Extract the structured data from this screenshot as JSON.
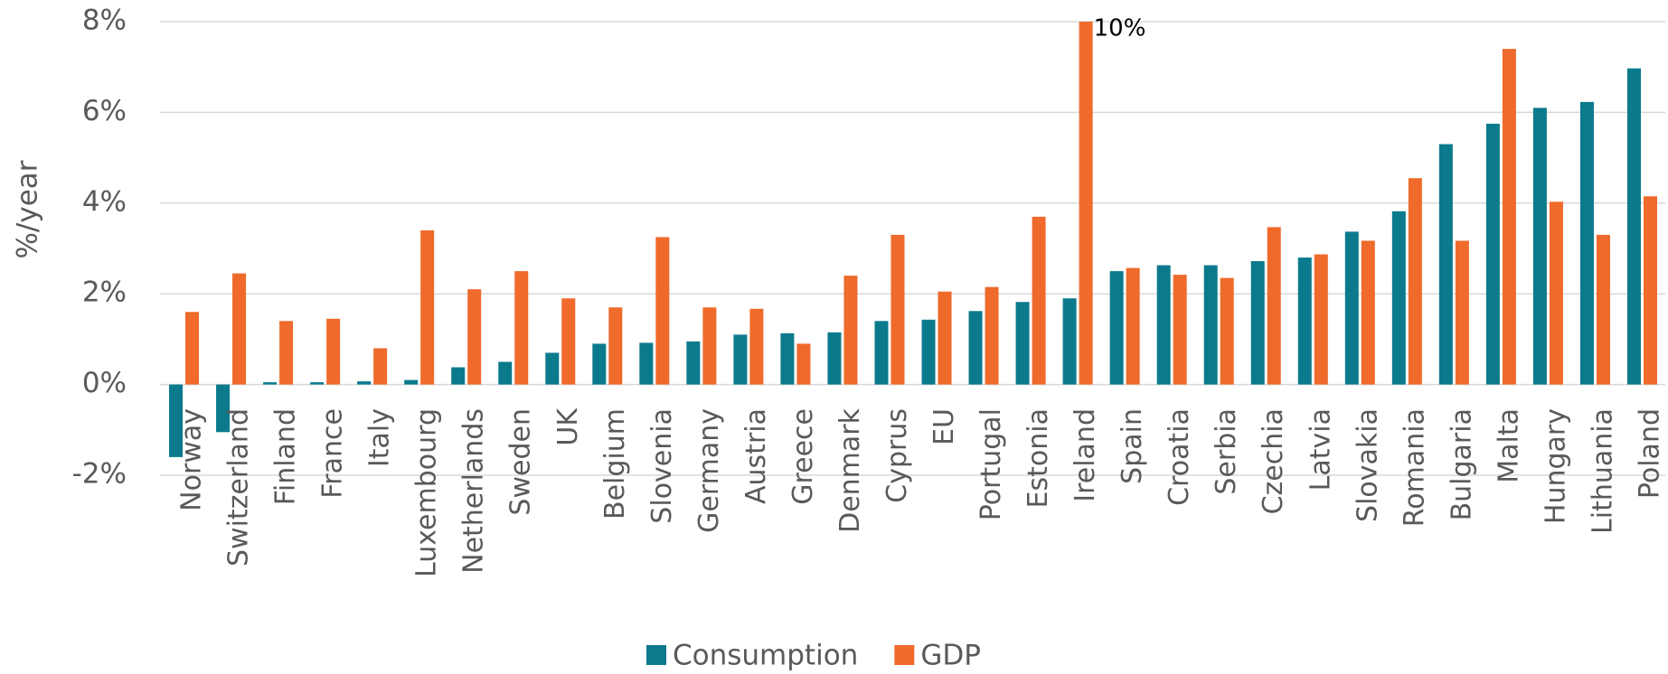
{
  "chart_data": {
    "type": "bar",
    "y_label": "%/year",
    "categories": [
      "Norway",
      "Switzerland",
      "Finland",
      "France",
      "Italy",
      "Luxembourg",
      "Netherlands",
      "Sweden",
      "UK",
      "Belgium",
      "Slovenia",
      "Germany",
      "Austria",
      "Greece",
      "Denmark",
      "Cyprus",
      "EU",
      "Portugal",
      "Estonia",
      "Ireland",
      "Spain",
      "Croatia",
      "Serbia",
      "Czechia",
      "Latvia",
      "Slovakia",
      "Romania",
      "Bulgaria",
      "Malta",
      "Hungary",
      "Lithuania",
      "Poland"
    ],
    "series": [
      {
        "name": "Consumption",
        "color": "#0b7a8c",
        "values": [
          -1.6,
          -1.05,
          0.05,
          0.05,
          0.07,
          0.1,
          0.38,
          0.5,
          0.7,
          0.9,
          0.92,
          0.95,
          1.1,
          1.13,
          1.15,
          1.4,
          1.43,
          1.62,
          1.82,
          1.9,
          2.5,
          2.63,
          2.63,
          2.72,
          2.8,
          3.37,
          3.82,
          5.3,
          5.75,
          6.1,
          6.23,
          6.97
        ]
      },
      {
        "name": "GDP",
        "color": "#ef6a2b",
        "values": [
          1.6,
          2.45,
          1.4,
          1.45,
          0.8,
          3.4,
          2.1,
          2.5,
          1.9,
          1.7,
          3.25,
          1.7,
          1.67,
          0.9,
          2.4,
          3.3,
          2.05,
          2.15,
          3.7,
          10,
          2.57,
          2.42,
          2.35,
          3.47,
          2.87,
          3.17,
          4.55,
          3.17,
          7.4,
          4.03,
          3.3,
          4.15
        ],
        "value_labels": [
          null,
          null,
          null,
          null,
          null,
          null,
          null,
          null,
          null,
          null,
          null,
          null,
          null,
          null,
          null,
          null,
          null,
          null,
          null,
          "10%",
          null,
          null,
          null,
          null,
          null,
          null,
          null,
          null,
          null,
          null,
          null,
          null
        ]
      }
    ],
    "ylim": [
      -2,
      8
    ],
    "yticks": [
      {
        "value": -2,
        "label": "-2%"
      },
      {
        "value": 0,
        "label": "0%"
      },
      {
        "value": 2,
        "label": "2%"
      },
      {
        "value": 4,
        "label": "4%"
      },
      {
        "value": 6,
        "label": "6%"
      },
      {
        "value": 8,
        "label": "8%"
      }
    ],
    "grid": true
  }
}
